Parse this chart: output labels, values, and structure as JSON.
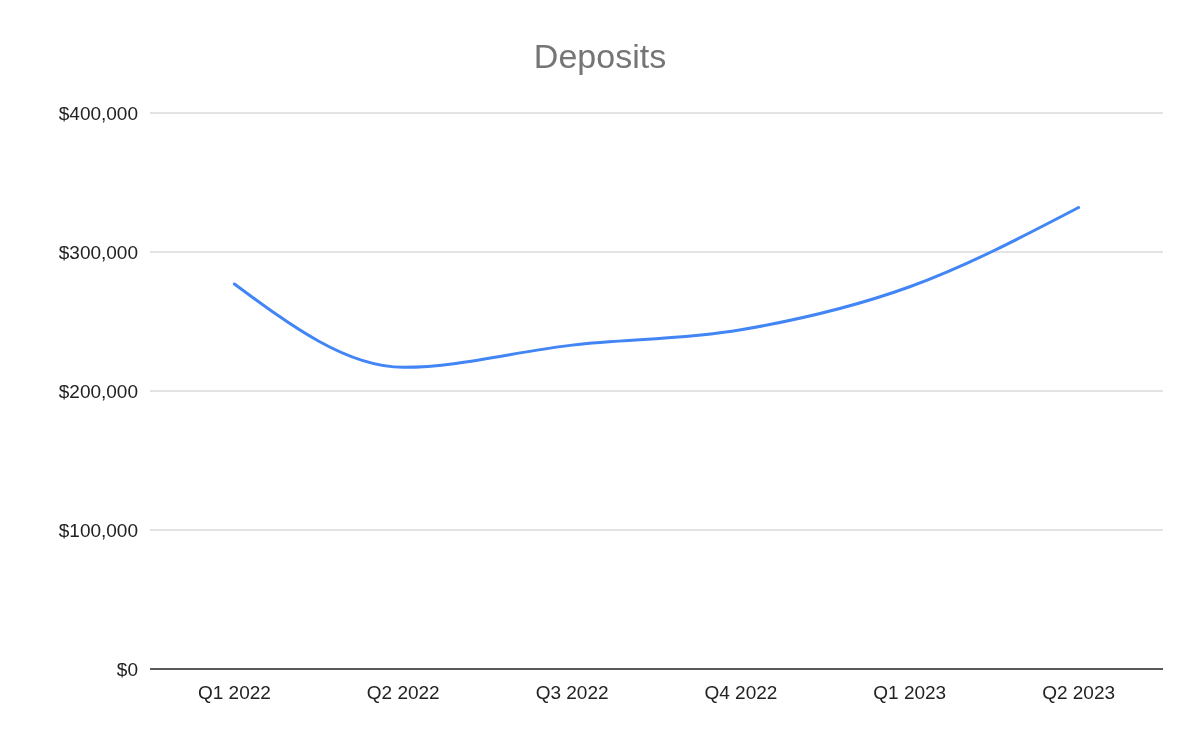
{
  "chart_data": {
    "type": "line",
    "title": "Deposits",
    "categories": [
      "Q1 2022",
      "Q2 2022",
      "Q3 2022",
      "Q4 2022",
      "Q1 2023",
      "Q2 2023"
    ],
    "series": [
      {
        "color": "#4285f4",
        "values": [
          277000,
          217000,
          233000,
          244000,
          275000,
          332000
        ]
      }
    ],
    "ylim": [
      0,
      400000
    ],
    "yticks": [
      {
        "value": 0,
        "label": "$0"
      },
      {
        "value": 100000,
        "label": "$100,000"
      },
      {
        "value": 200000,
        "label": "$200,000"
      },
      {
        "value": 300000,
        "label": "$300,000"
      },
      {
        "value": 400000,
        "label": "$400,000"
      }
    ],
    "grid": "y",
    "marker": "none"
  }
}
